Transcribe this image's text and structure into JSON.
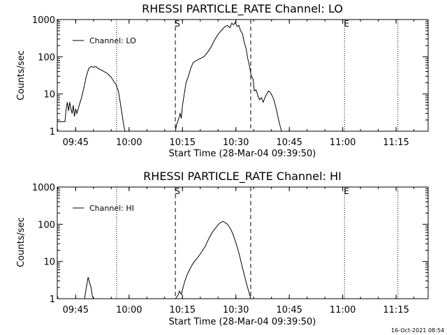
{
  "timestamp": "16-Oct-2021 08:54",
  "chart_data": [
    {
      "type": "line",
      "title": "RHESSI PARTICLE_RATE Channel: LO",
      "xlabel": "Start Time (28-Mar-04 09:39:50)",
      "ylabel": "Counts/sec",
      "yscale": "log",
      "ylim": [
        1,
        1000
      ],
      "xlim": [
        "09:39:50",
        "11:24:00"
      ],
      "x_ticks": [
        "09:45",
        "10:00",
        "10:15",
        "10:30",
        "10:45",
        "11:00",
        "11:15"
      ],
      "y_ticks": [
        "1",
        "10",
        "100",
        "1000"
      ],
      "legend": {
        "position": "top-left",
        "entries": [
          "Channel: LO"
        ]
      },
      "markers": [
        {
          "label": "S",
          "time": "10:13:00",
          "style": "dashed"
        },
        {
          "time": "10:34:10",
          "style": "dashed"
        },
        {
          "label": "E",
          "time": "11:00:30",
          "style": "dotted"
        },
        {
          "time": "09:56:30",
          "style": "dotted"
        },
        {
          "time": "11:15:30",
          "style": "dotted"
        }
      ],
      "series": [
        {
          "name": "Channel: LO",
          "segments": [
            [
              [
                "09:39:50",
                1.8
              ],
              [
                "09:42:00",
                1.8
              ],
              [
                "09:42:20",
                4
              ],
              [
                "09:42:40",
                6
              ],
              [
                "09:43:00",
                3.5
              ],
              [
                "09:43:20",
                6
              ],
              [
                "09:43:40",
                4
              ],
              [
                "09:44:00",
                3
              ],
              [
                "09:44:20",
                5
              ],
              [
                "09:44:40",
                2.5
              ],
              [
                "09:45:00",
                4
              ],
              [
                "09:45:20",
                3
              ],
              [
                "09:46:00",
                5
              ],
              [
                "09:46:40",
                8
              ],
              [
                "09:47:20",
                15
              ],
              [
                "09:48:00",
                30
              ],
              [
                "09:48:40",
                48
              ],
              [
                "09:49:20",
                55
              ],
              [
                "09:50:00",
                52
              ],
              [
                "09:50:40",
                55
              ],
              [
                "09:51:20",
                48
              ],
              [
                "09:52:00",
                45
              ],
              [
                "09:53:00",
                40
              ],
              [
                "09:54:00",
                35
              ],
              [
                "09:55:00",
                28
              ],
              [
                "09:55:40",
                22
              ],
              [
                "09:56:20",
                18
              ],
              [
                "09:57:00",
                12
              ],
              [
                "09:57:30",
                6
              ],
              [
                "09:58:00",
                3
              ],
              [
                "09:58:30",
                1.4
              ],
              [
                "09:58:50",
                1
              ]
            ],
            [
              [
                "10:13:00",
                1
              ],
              [
                "10:13:20",
                1.5
              ],
              [
                "10:13:50",
                2
              ],
              [
                "10:14:20",
                3
              ],
              [
                "10:14:40",
                2.2
              ],
              [
                "10:15:00",
                5
              ],
              [
                "10:15:30",
                10
              ],
              [
                "10:16:00",
                20
              ],
              [
                "10:16:40",
                30
              ],
              [
                "10:17:20",
                50
              ],
              [
                "10:18:00",
                70
              ],
              [
                "10:19:00",
                80
              ],
              [
                "10:20:00",
                90
              ],
              [
                "10:21:00",
                100
              ],
              [
                "10:22:00",
                130
              ],
              [
                "10:23:00",
                180
              ],
              [
                "10:24:00",
                280
              ],
              [
                "10:25:00",
                400
              ],
              [
                "10:26:00",
                520
              ],
              [
                "10:27:00",
                650
              ],
              [
                "10:27:40",
                700
              ],
              [
                "10:28:20",
                600
              ],
              [
                "10:28:50",
                800
              ],
              [
                "10:29:20",
                720
              ],
              [
                "10:29:50",
                850
              ],
              [
                "10:30:20",
                650
              ],
              [
                "10:30:50",
                700
              ],
              [
                "10:31:20",
                500
              ],
              [
                "10:31:50",
                420
              ],
              [
                "10:32:20",
                250
              ],
              [
                "10:32:50",
                170
              ],
              [
                "10:33:20",
                90
              ],
              [
                "10:33:50",
                55
              ],
              [
                "10:34:20",
                30
              ],
              [
                "10:34:50",
                25
              ],
              [
                "10:35:10",
                12
              ],
              [
                "10:35:40",
                13
              ],
              [
                "10:36:10",
                9
              ],
              [
                "10:36:40",
                7
              ],
              [
                "10:37:10",
                8
              ],
              [
                "10:37:40",
                6
              ],
              [
                "10:38:10",
                8
              ],
              [
                "10:38:40",
                10
              ],
              [
                "10:39:10",
                12
              ],
              [
                "10:39:40",
                11
              ],
              [
                "10:40:10",
                9
              ],
              [
                "10:40:40",
                7
              ],
              [
                "10:41:20",
                4
              ],
              [
                "10:42:00",
                2
              ],
              [
                "10:42:30",
                1.3
              ],
              [
                "10:42:50",
                1
              ]
            ]
          ]
        }
      ]
    },
    {
      "type": "line",
      "title": "RHESSI PARTICLE_RATE Channel: HI",
      "xlabel": "Start Time (28-Mar-04 09:39:50)",
      "ylabel": "Counts/sec",
      "yscale": "log",
      "ylim": [
        1,
        1000
      ],
      "xlim": [
        "09:39:50",
        "11:24:00"
      ],
      "x_ticks": [
        "09:45",
        "10:00",
        "10:15",
        "10:30",
        "10:45",
        "11:00",
        "11:15"
      ],
      "y_ticks": [
        "1",
        "10",
        "100",
        "1000"
      ],
      "legend": {
        "position": "top-left",
        "entries": [
          "Channel: HI"
        ]
      },
      "markers": [
        {
          "label": "S",
          "time": "10:13:00",
          "style": "dashed"
        },
        {
          "time": "10:34:10",
          "style": "dashed"
        },
        {
          "label": "E",
          "time": "11:00:30",
          "style": "dotted"
        },
        {
          "time": "09:56:30",
          "style": "dotted"
        },
        {
          "time": "11:15:30",
          "style": "dotted"
        }
      ],
      "series": [
        {
          "name": "Channel: HI",
          "segments": [
            [
              [
                "09:47:30",
                1
              ],
              [
                "09:48:00",
                2
              ],
              [
                "09:48:30",
                3.8
              ],
              [
                "09:49:00",
                2.5
              ],
              [
                "09:49:20",
                2
              ],
              [
                "09:49:40",
                1.2
              ],
              [
                "09:50:00",
                1
              ]
            ],
            [
              [
                "10:13:00",
                1
              ],
              [
                "10:13:40",
                1.2
              ],
              [
                "10:14:10",
                1.6
              ],
              [
                "10:14:40",
                1.3
              ],
              [
                "10:15:10",
                2
              ],
              [
                "10:15:40",
                3
              ],
              [
                "10:16:20",
                4.5
              ],
              [
                "10:17:00",
                6
              ],
              [
                "10:17:40",
                8
              ],
              [
                "10:18:20",
                10
              ],
              [
                "10:19:20",
                13
              ],
              [
                "10:20:20",
                18
              ],
              [
                "10:21:20",
                25
              ],
              [
                "10:22:20",
                40
              ],
              [
                "10:23:20",
                60
              ],
              [
                "10:24:20",
                80
              ],
              [
                "10:25:20",
                105
              ],
              [
                "10:26:20",
                120
              ],
              [
                "10:27:00",
                110
              ],
              [
                "10:27:40",
                100
              ],
              [
                "10:28:20",
                80
              ],
              [
                "10:29:00",
                60
              ],
              [
                "10:29:40",
                40
              ],
              [
                "10:30:20",
                25
              ],
              [
                "10:31:00",
                15
              ],
              [
                "10:31:40",
                8
              ],
              [
                "10:32:20",
                4.5
              ],
              [
                "10:33:00",
                2.5
              ],
              [
                "10:33:40",
                1.5
              ],
              [
                "10:34:10",
                1
              ]
            ]
          ]
        }
      ]
    }
  ]
}
